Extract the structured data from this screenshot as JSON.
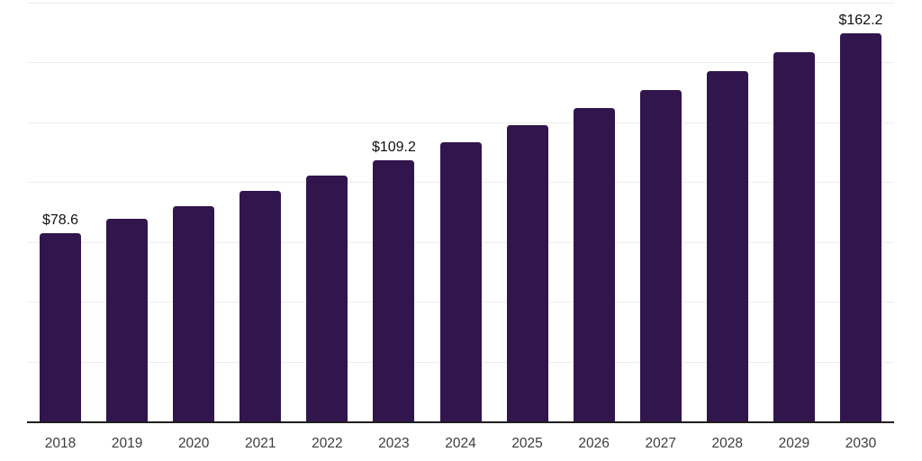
{
  "chart_data": {
    "type": "bar",
    "title": "",
    "xlabel": "",
    "ylabel": "",
    "categories": [
      "2018",
      "2019",
      "2020",
      "2021",
      "2022",
      "2023",
      "2024",
      "2025",
      "2026",
      "2027",
      "2028",
      "2029",
      "2030"
    ],
    "values": [
      78.6,
      84.6,
      89.8,
      96.5,
      102.7,
      109.2,
      116.7,
      123.8,
      131.0,
      138.4,
      146.4,
      154.4,
      162.2
    ],
    "value_prefix": "$",
    "labeled_points": [
      {
        "category": "2018",
        "label": "$78.6"
      },
      {
        "category": "2023",
        "label": "$109.2"
      },
      {
        "category": "2030",
        "label": "$162.2"
      }
    ],
    "ylim": [
      0,
      175
    ],
    "gridline_interval": 25,
    "grid": "horizontal-only",
    "y_tick_labels_visible": false,
    "legend": "none",
    "colors": {
      "bar": "#31154d",
      "axis_line": "#1f1f1f",
      "gridline": "#ededee",
      "value_label": "#111111",
      "year_label": "#3d3d3d",
      "background": "#ffffff"
    }
  }
}
